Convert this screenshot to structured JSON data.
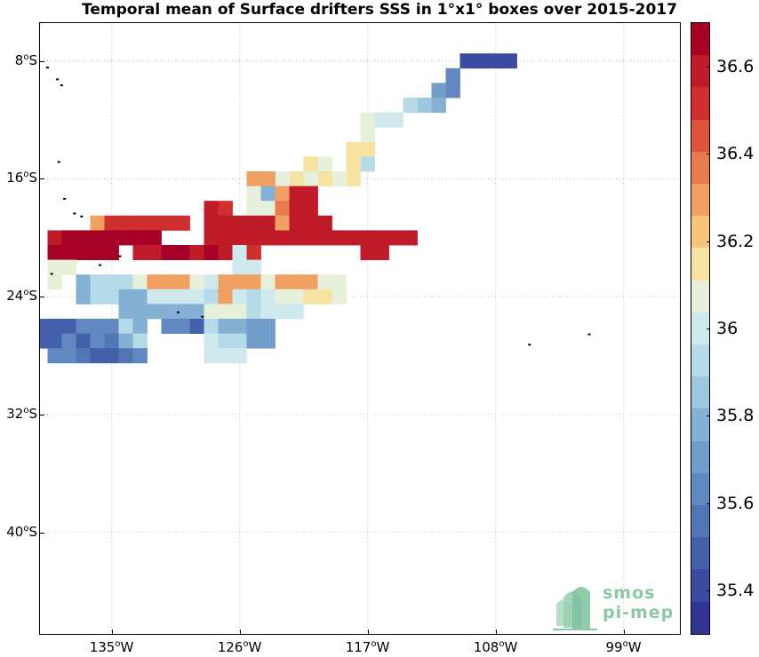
{
  "title": "Temporal mean of Surface drifters SSS in 1°x1° boxes over 2015-2017",
  "y_labels": [
    {
      "deg": "8",
      "h": "S",
      "lat": -8
    },
    {
      "deg": "16",
      "h": "S",
      "lat": -16
    },
    {
      "deg": "24",
      "h": "S",
      "lat": -24
    },
    {
      "deg": "32",
      "h": "S",
      "lat": -32
    },
    {
      "deg": "40",
      "h": "S",
      "lat": -40
    }
  ],
  "x_labels": [
    {
      "deg": "135",
      "h": "W",
      "lon": -135
    },
    {
      "deg": "126",
      "h": "W",
      "lon": -126
    },
    {
      "deg": "117",
      "h": "W",
      "lon": -117
    },
    {
      "deg": "108",
      "h": "W",
      "lon": -108
    },
    {
      "deg": "99",
      "h": "W",
      "lon": -99
    }
  ],
  "map_extent": {
    "lon_min": -140,
    "lon_max": -95,
    "lat_min": -45,
    "lat_max": -4
  },
  "colorbar": {
    "min": 35.3,
    "max": 36.7,
    "ticks": [
      "35.4",
      "35.6",
      "35.8",
      "36",
      "36.2",
      "36.4",
      "36.6"
    ],
    "colors": [
      "#313695",
      "#3a4ba0",
      "#4560ab",
      "#5275b5",
      "#6188c0",
      "#729dca",
      "#85b1d4",
      "#9cc7df",
      "#b5dbe9",
      "#cfe9ef",
      "#e6f0da",
      "#f6e3a2",
      "#f6c57b",
      "#f0a063",
      "#e87a4f",
      "#dd553d",
      "#d02f2f",
      "#c01b29",
      "#a50026"
    ]
  },
  "logo": {
    "line1": "smos",
    "line2": "pi-mep"
  },
  "chart_data": {
    "type": "heatmap",
    "title": "Temporal mean of Surface drifters SSS in 1°x1° boxes over 2015-2017",
    "variable": "SSS",
    "cell_size_deg": 1,
    "cells": [
      {
        "lon": -110,
        "lat": -8,
        "sss": 35.4
      },
      {
        "lon": -109,
        "lat": -8,
        "sss": 35.4
      },
      {
        "lon": -108,
        "lat": -8,
        "sss": 35.4
      },
      {
        "lon": -107,
        "lat": -8,
        "sss": 35.4
      },
      {
        "lon": -111,
        "lat": -9,
        "sss": 35.6
      },
      {
        "lon": -111,
        "lat": -10,
        "sss": 35.6
      },
      {
        "lon": -112,
        "lat": -10,
        "sss": 35.7
      },
      {
        "lon": -112,
        "lat": -11,
        "sss": 35.8
      },
      {
        "lon": -113,
        "lat": -11,
        "sss": 35.85
      },
      {
        "lon": -114,
        "lat": -11,
        "sss": 35.95
      },
      {
        "lon": -115,
        "lat": -12,
        "sss": 36.0
      },
      {
        "lon": -116,
        "lat": -12,
        "sss": 36.0
      },
      {
        "lon": -117,
        "lat": -12,
        "sss": 36.1
      },
      {
        "lon": -117,
        "lat": -13,
        "sss": 36.1
      },
      {
        "lon": -117,
        "lat": -14,
        "sss": 36.15
      },
      {
        "lon": -118,
        "lat": -14,
        "sss": 36.15
      },
      {
        "lon": -117,
        "lat": -15,
        "sss": 35.9
      },
      {
        "lon": -118,
        "lat": -15,
        "sss": 36.15
      },
      {
        "lon": -120,
        "lat": -15,
        "sss": 36.1
      },
      {
        "lon": -121,
        "lat": -15,
        "sss": 36.15
      },
      {
        "lon": -118,
        "lat": -16,
        "sss": 36.15
      },
      {
        "lon": -119,
        "lat": -16,
        "sss": 36.1
      },
      {
        "lon": -120,
        "lat": -16,
        "sss": 36.15
      },
      {
        "lon": -121,
        "lat": -16,
        "sss": 36.1
      },
      {
        "lon": -122,
        "lat": -16,
        "sss": 36.15
      },
      {
        "lon": -123,
        "lat": -16,
        "sss": 36.1
      },
      {
        "lon": -124,
        "lat": -16,
        "sss": 36.3
      },
      {
        "lon": -125,
        "lat": -16,
        "sss": 36.3
      },
      {
        "lon": -125,
        "lat": -17,
        "sss": 36.1
      },
      {
        "lon": -124,
        "lat": -17,
        "sss": 35.8
      },
      {
        "lon": -123,
        "lat": -17,
        "sss": 36.3
      },
      {
        "lon": -122,
        "lat": -17,
        "sss": 36.6
      },
      {
        "lon": -121,
        "lat": -17,
        "sss": 36.6
      },
      {
        "lon": -128,
        "lat": -18,
        "sss": 36.6
      },
      {
        "lon": -127,
        "lat": -18,
        "sss": 36.5
      },
      {
        "lon": -125,
        "lat": -18,
        "sss": 36.1
      },
      {
        "lon": -124,
        "lat": -18,
        "sss": 36.1
      },
      {
        "lon": -123,
        "lat": -18,
        "sss": 36.4
      },
      {
        "lon": -122,
        "lat": -18,
        "sss": 36.6
      },
      {
        "lon": -121,
        "lat": -18,
        "sss": 36.6
      },
      {
        "lon": -136,
        "lat": -19,
        "sss": 36.3
      },
      {
        "lon": -135,
        "lat": -19,
        "sss": 36.5
      },
      {
        "lon": -134,
        "lat": -19,
        "sss": 36.5
      },
      {
        "lon": -133,
        "lat": -19,
        "sss": 36.5
      },
      {
        "lon": -132,
        "lat": -19,
        "sss": 36.5
      },
      {
        "lon": -131,
        "lat": -19,
        "sss": 36.5
      },
      {
        "lon": -130,
        "lat": -19,
        "sss": 36.5
      },
      {
        "lon": -128,
        "lat": -19,
        "sss": 36.6
      },
      {
        "lon": -127,
        "lat": -19,
        "sss": 36.6
      },
      {
        "lon": -126,
        "lat": -19,
        "sss": 36.6
      },
      {
        "lon": -125,
        "lat": -19,
        "sss": 36.6
      },
      {
        "lon": -124,
        "lat": -19,
        "sss": 36.6
      },
      {
        "lon": -123,
        "lat": -19,
        "sss": 36.3
      },
      {
        "lon": -122,
        "lat": -19,
        "sss": 36.6
      },
      {
        "lon": -121,
        "lat": -19,
        "sss": 36.6
      },
      {
        "lon": -120,
        "lat": -19,
        "sss": 36.6
      },
      {
        "lon": -139,
        "lat": -20,
        "sss": 36.6
      },
      {
        "lon": -138,
        "lat": -20,
        "sss": 36.7
      },
      {
        "lon": -137,
        "lat": -20,
        "sss": 36.7
      },
      {
        "lon": -136,
        "lat": -20,
        "sss": 36.7
      },
      {
        "lon": -135,
        "lat": -20,
        "sss": 36.7
      },
      {
        "lon": -134,
        "lat": -20,
        "sss": 36.7
      },
      {
        "lon": -133,
        "lat": -20,
        "sss": 36.7
      },
      {
        "lon": -132,
        "lat": -20,
        "sss": 36.7
      },
      {
        "lon": -128,
        "lat": -20,
        "sss": 36.6
      },
      {
        "lon": -127,
        "lat": -20,
        "sss": 36.6
      },
      {
        "lon": -126,
        "lat": -20,
        "sss": 36.6
      },
      {
        "lon": -125,
        "lat": -20,
        "sss": 36.6
      },
      {
        "lon": -124,
        "lat": -20,
        "sss": 36.6
      },
      {
        "lon": -123,
        "lat": -20,
        "sss": 36.6
      },
      {
        "lon": -122,
        "lat": -20,
        "sss": 36.6
      },
      {
        "lon": -121,
        "lat": -20,
        "sss": 36.6
      },
      {
        "lon": -120,
        "lat": -20,
        "sss": 36.6
      },
      {
        "lon": -119,
        "lat": -20,
        "sss": 36.6
      },
      {
        "lon": -118,
        "lat": -20,
        "sss": 36.6
      },
      {
        "lon": -117,
        "lat": -20,
        "sss": 36.6
      },
      {
        "lon": -116,
        "lat": -20,
        "sss": 36.6
      },
      {
        "lon": -115,
        "lat": -20,
        "sss": 36.6
      },
      {
        "lon": -114,
        "lat": -20,
        "sss": 36.6
      },
      {
        "lon": -139,
        "lat": -21,
        "sss": 36.7
      },
      {
        "lon": -138,
        "lat": -21,
        "sss": 36.7
      },
      {
        "lon": -137,
        "lat": -21,
        "sss": 36.7
      },
      {
        "lon": -136,
        "lat": -21,
        "sss": 36.7
      },
      {
        "lon": -135,
        "lat": -21,
        "sss": 36.7
      },
      {
        "lon": -133,
        "lat": -21,
        "sss": 36.6
      },
      {
        "lon": -132,
        "lat": -21,
        "sss": 36.6
      },
      {
        "lon": -131,
        "lat": -21,
        "sss": 36.7
      },
      {
        "lon": -130,
        "lat": -21,
        "sss": 36.7
      },
      {
        "lon": -129,
        "lat": -21,
        "sss": 36.6
      },
      {
        "lon": -128,
        "lat": -21,
        "sss": 36.7
      },
      {
        "lon": -127,
        "lat": -21,
        "sss": 36.6
      },
      {
        "lon": -126,
        "lat": -21,
        "sss": 36.0
      },
      {
        "lon": -125,
        "lat": -21,
        "sss": 36.5
      },
      {
        "lon": -117,
        "lat": -21,
        "sss": 36.6
      },
      {
        "lon": -116,
        "lat": -21,
        "sss": 36.6
      },
      {
        "lon": -139,
        "lat": -22,
        "sss": 36.1
      },
      {
        "lon": -138,
        "lat": -22,
        "sss": 36.1
      },
      {
        "lon": -126,
        "lat": -22,
        "sss": 36.0
      },
      {
        "lon": -125,
        "lat": -22,
        "sss": 36.0
      },
      {
        "lon": -139,
        "lat": -23,
        "sss": 36.1
      },
      {
        "lon": -137,
        "lat": -23,
        "sss": 35.8
      },
      {
        "lon": -136,
        "lat": -23,
        "sss": 35.9
      },
      {
        "lon": -135,
        "lat": -23,
        "sss": 35.9
      },
      {
        "lon": -134,
        "lat": -23,
        "sss": 35.9
      },
      {
        "lon": -133,
        "lat": -23,
        "sss": 36.1
      },
      {
        "lon": -132,
        "lat": -23,
        "sss": 36.3
      },
      {
        "lon": -131,
        "lat": -23,
        "sss": 36.3
      },
      {
        "lon": -130,
        "lat": -23,
        "sss": 36.3
      },
      {
        "lon": -129,
        "lat": -23,
        "sss": 36.1
      },
      {
        "lon": -128,
        "lat": -23,
        "sss": 36.0
      },
      {
        "lon": -127,
        "lat": -23,
        "sss": 36.3
      },
      {
        "lon": -126,
        "lat": -23,
        "sss": 36.3
      },
      {
        "lon": -125,
        "lat": -23,
        "sss": 36.3
      },
      {
        "lon": -124,
        "lat": -23,
        "sss": 36.1
      },
      {
        "lon": -123,
        "lat": -23,
        "sss": 36.3
      },
      {
        "lon": -122,
        "lat": -23,
        "sss": 36.3
      },
      {
        "lon": -121,
        "lat": -23,
        "sss": 36.3
      },
      {
        "lon": -120,
        "lat": -23,
        "sss": 36.1
      },
      {
        "lon": -119,
        "lat": -23,
        "sss": 36.1
      },
      {
        "lon": -137,
        "lat": -24,
        "sss": 35.8
      },
      {
        "lon": -136,
        "lat": -24,
        "sss": 35.9
      },
      {
        "lon": -135,
        "lat": -24,
        "sss": 35.9
      },
      {
        "lon": -134,
        "lat": -24,
        "sss": 35.8
      },
      {
        "lon": -133,
        "lat": -24,
        "sss": 35.8
      },
      {
        "lon": -132,
        "lat": -24,
        "sss": 36.0
      },
      {
        "lon": -131,
        "lat": -24,
        "sss": 36.0
      },
      {
        "lon": -130,
        "lat": -24,
        "sss": 36.0
      },
      {
        "lon": -129,
        "lat": -24,
        "sss": 36.0
      },
      {
        "lon": -128,
        "lat": -24,
        "sss": 35.95
      },
      {
        "lon": -127,
        "lat": -24,
        "sss": 36.3
      },
      {
        "lon": -126,
        "lat": -24,
        "sss": 36.0
      },
      {
        "lon": -125,
        "lat": -24,
        "sss": 35.9
      },
      {
        "lon": -124,
        "lat": -24,
        "sss": 36.0
      },
      {
        "lon": -123,
        "lat": -24,
        "sss": 36.1
      },
      {
        "lon": -122,
        "lat": -24,
        "sss": 36.1
      },
      {
        "lon": -121,
        "lat": -24,
        "sss": 36.15
      },
      {
        "lon": -120,
        "lat": -24,
        "sss": 36.15
      },
      {
        "lon": -119,
        "lat": -24,
        "sss": 36.1
      },
      {
        "lon": -134,
        "lat": -25,
        "sss": 35.8
      },
      {
        "lon": -133,
        "lat": -25,
        "sss": 35.8
      },
      {
        "lon": -132,
        "lat": -25,
        "sss": 35.8
      },
      {
        "lon": -131,
        "lat": -25,
        "sss": 35.8
      },
      {
        "lon": -130,
        "lat": -25,
        "sss": 35.8
      },
      {
        "lon": -129,
        "lat": -25,
        "sss": 35.8
      },
      {
        "lon": -128,
        "lat": -25,
        "sss": 36.1
      },
      {
        "lon": -127,
        "lat": -25,
        "sss": 36.1
      },
      {
        "lon": -126,
        "lat": -25,
        "sss": 36.1
      },
      {
        "lon": -125,
        "lat": -25,
        "sss": 35.9
      },
      {
        "lon": -124,
        "lat": -25,
        "sss": 36.0
      },
      {
        "lon": -123,
        "lat": -25,
        "sss": 36.0
      },
      {
        "lon": -122,
        "lat": -25,
        "sss": 36.0
      },
      {
        "lon": -140,
        "lat": -26,
        "sss": 35.5
      },
      {
        "lon": -139,
        "lat": -26,
        "sss": 35.5
      },
      {
        "lon": -138,
        "lat": -26,
        "sss": 35.5
      },
      {
        "lon": -137,
        "lat": -26,
        "sss": 35.6
      },
      {
        "lon": -136,
        "lat": -26,
        "sss": 35.6
      },
      {
        "lon": -135,
        "lat": -26,
        "sss": 35.6
      },
      {
        "lon": -134,
        "lat": -26,
        "sss": 35.9
      },
      {
        "lon": -133,
        "lat": -26,
        "sss": 35.8
      },
      {
        "lon": -131,
        "lat": -26,
        "sss": 35.6
      },
      {
        "lon": -130,
        "lat": -26,
        "sss": 35.6
      },
      {
        "lon": -129,
        "lat": -26,
        "sss": 35.45
      },
      {
        "lon": -128,
        "lat": -26,
        "sss": 35.9
      },
      {
        "lon": -127,
        "lat": -26,
        "sss": 35.8
      },
      {
        "lon": -126,
        "lat": -26,
        "sss": 35.8
      },
      {
        "lon": -125,
        "lat": -26,
        "sss": 35.7
      },
      {
        "lon": -124,
        "lat": -26,
        "sss": 35.7
      },
      {
        "lon": -140,
        "lat": -27,
        "sss": 35.5
      },
      {
        "lon": -139,
        "lat": -27,
        "sss": 35.5
      },
      {
        "lon": -138,
        "lat": -27,
        "sss": 35.6
      },
      {
        "lon": -137,
        "lat": -27,
        "sss": 35.5
      },
      {
        "lon": -136,
        "lat": -27,
        "sss": 35.6
      },
      {
        "lon": -135,
        "lat": -27,
        "sss": 35.55
      },
      {
        "lon": -134,
        "lat": -27,
        "sss": 35.8
      },
      {
        "lon": -133,
        "lat": -27,
        "sss": 35.9
      },
      {
        "lon": -128,
        "lat": -27,
        "sss": 36.0
      },
      {
        "lon": -127,
        "lat": -27,
        "sss": 35.9
      },
      {
        "lon": -126,
        "lat": -27,
        "sss": 35.9
      },
      {
        "lon": -125,
        "lat": -27,
        "sss": 35.7
      },
      {
        "lon": -124,
        "lat": -27,
        "sss": 35.7
      },
      {
        "lon": -139,
        "lat": -28,
        "sss": 35.6
      },
      {
        "lon": -138,
        "lat": -28,
        "sss": 35.6
      },
      {
        "lon": -137,
        "lat": -28,
        "sss": 35.55
      },
      {
        "lon": -136,
        "lat": -28,
        "sss": 35.5
      },
      {
        "lon": -135,
        "lat": -28,
        "sss": 35.45
      },
      {
        "lon": -134,
        "lat": -28,
        "sss": 35.55
      },
      {
        "lon": -133,
        "lat": -28,
        "sss": 35.6
      },
      {
        "lon": -128,
        "lat": -28,
        "sss": 36.0
      },
      {
        "lon": -127,
        "lat": -28,
        "sss": 36.0
      },
      {
        "lon": -126,
        "lat": -28,
        "sss": 36.0
      }
    ]
  }
}
